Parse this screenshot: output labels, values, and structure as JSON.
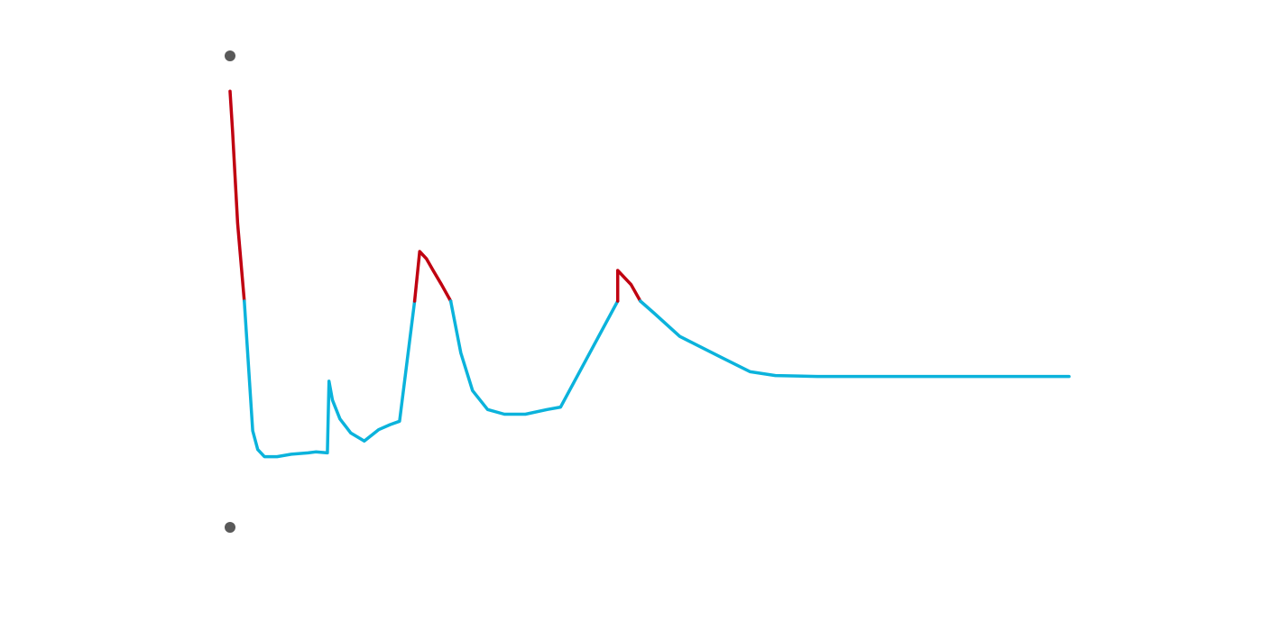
{
  "chart_data": {
    "type": "line",
    "title": "",
    "xlabel": "",
    "ylabel": "",
    "grid": false,
    "legend": "none",
    "threshold": 0.48,
    "ylim": [
      0,
      1
    ],
    "xlim": [
      0,
      100
    ],
    "colors": {
      "below_threshold": "#0bb3dc",
      "above_threshold": "#c00010",
      "marker": "#595959"
    },
    "range_markers": [
      {
        "name": "upper-range-marker",
        "x": 0,
        "y": 1.0
      },
      {
        "name": "lower-range-marker",
        "x": 0,
        "y": 0.0
      }
    ],
    "series": [
      {
        "x": [
          0,
          0.3,
          0.9,
          1.7,
          2.7,
          3.3,
          4.1,
          5.6,
          7.3,
          9.3,
          10.2,
          11.6,
          11.8,
          11.8,
          12.2,
          13.1,
          14.4,
          16.0,
          17.7,
          19.1,
          20.2,
          22.0,
          22.6,
          23.4,
          24.2,
          25.2,
          26.3,
          27.5,
          28.9,
          30.7,
          32.7,
          35.2,
          37.8,
          39.4,
          46.2,
          46.2,
          47.8,
          48.9,
          50.5,
          53.6,
          58.6,
          62.0,
          65.0,
          70.0,
          80.0,
          90.0,
          100.0
        ],
        "y": [
          0.925,
          0.84,
          0.645,
          0.48,
          0.205,
          0.165,
          0.15,
          0.15,
          0.155,
          0.158,
          0.16,
          0.158,
          0.31,
          0.31,
          0.27,
          0.23,
          0.2,
          0.183,
          0.207,
          0.218,
          0.225,
          0.48,
          0.585,
          0.57,
          0.545,
          0.515,
          0.48,
          0.37,
          0.29,
          0.25,
          0.24,
          0.24,
          0.25,
          0.255,
          0.48,
          0.545,
          0.515,
          0.48,
          0.455,
          0.405,
          0.36,
          0.33,
          0.322,
          0.32,
          0.32,
          0.32,
          0.32
        ]
      }
    ]
  }
}
